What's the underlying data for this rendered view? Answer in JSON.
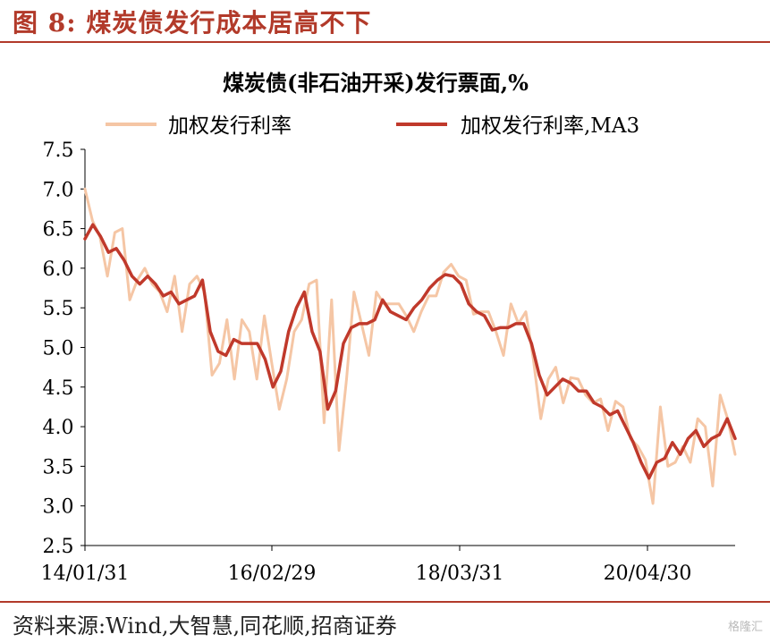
{
  "header": {
    "figure_label": "图 8:",
    "figure_title": "煤炭债发行成本居高不下",
    "accent_color": "#b23a2a"
  },
  "footer": {
    "source": "资料来源:Wind,大智慧,同花顺,招商证券",
    "watermark": "格隆汇"
  },
  "chart_data": {
    "type": "line",
    "title": "煤炭债(非石油开采)发行票面,%",
    "xlabel": "",
    "ylabel": "",
    "ylim": [
      2.5,
      7.5
    ],
    "yticks": [
      "2.5",
      "3.0",
      "3.5",
      "4.0",
      "4.5",
      "5.0",
      "5.5",
      "6.0",
      "6.5",
      "7.0",
      "7.5"
    ],
    "xticks": [
      "14/01/31",
      "16/02/29",
      "18/03/31",
      "20/04/30"
    ],
    "grid": false,
    "legend": "top",
    "series": [
      {
        "name": "加权发行利率",
        "color": "#f5c6a5",
        "values": [
          7.0,
          6.6,
          6.4,
          5.9,
          6.45,
          6.5,
          5.6,
          5.85,
          6.0,
          5.8,
          5.7,
          5.45,
          5.9,
          5.2,
          5.8,
          5.9,
          5.7,
          4.65,
          4.8,
          5.35,
          4.6,
          5.35,
          5.2,
          4.6,
          5.4,
          4.8,
          4.22,
          4.6,
          5.2,
          5.35,
          5.8,
          5.85,
          4.05,
          5.6,
          3.7,
          4.6,
          5.7,
          5.3,
          4.9,
          5.7,
          5.55,
          5.55,
          5.55,
          5.4,
          5.2,
          5.45,
          5.65,
          5.65,
          5.95,
          6.05,
          5.9,
          5.85,
          5.42,
          5.45,
          5.45,
          5.2,
          4.9,
          5.55,
          5.3,
          5.45,
          4.85,
          4.1,
          4.6,
          4.75,
          4.3,
          4.62,
          4.6,
          4.4,
          4.3,
          4.35,
          3.95,
          4.32,
          4.25,
          3.85,
          3.75,
          3.58,
          3.03,
          4.25,
          3.5,
          3.55,
          3.75,
          3.55,
          4.1,
          4.0,
          3.25,
          4.4,
          4.1,
          3.65
        ]
      },
      {
        "name": "加权发行利率,MA3",
        "color": "#c0392b",
        "values": [
          6.37,
          6.55,
          6.4,
          6.2,
          6.25,
          6.1,
          5.9,
          5.8,
          5.9,
          5.8,
          5.65,
          5.7,
          5.55,
          5.6,
          5.65,
          5.85,
          5.2,
          4.95,
          4.9,
          5.1,
          5.05,
          5.05,
          5.05,
          4.85,
          4.5,
          4.7,
          5.2,
          5.5,
          5.7,
          5.2,
          4.95,
          4.22,
          4.45,
          5.05,
          5.25,
          5.3,
          5.3,
          5.35,
          5.6,
          5.45,
          5.4,
          5.35,
          5.5,
          5.6,
          5.75,
          5.85,
          5.92,
          5.9,
          5.8,
          5.55,
          5.45,
          5.4,
          5.22,
          5.25,
          5.25,
          5.3,
          5.3,
          5.05,
          4.65,
          4.4,
          4.5,
          4.6,
          4.55,
          4.45,
          4.45,
          4.3,
          4.25,
          4.15,
          4.2,
          4.0,
          3.8,
          3.55,
          3.35,
          3.55,
          3.6,
          3.8,
          3.65,
          3.85,
          3.95,
          3.75,
          3.85,
          3.9,
          4.1,
          3.85
        ]
      }
    ]
  }
}
